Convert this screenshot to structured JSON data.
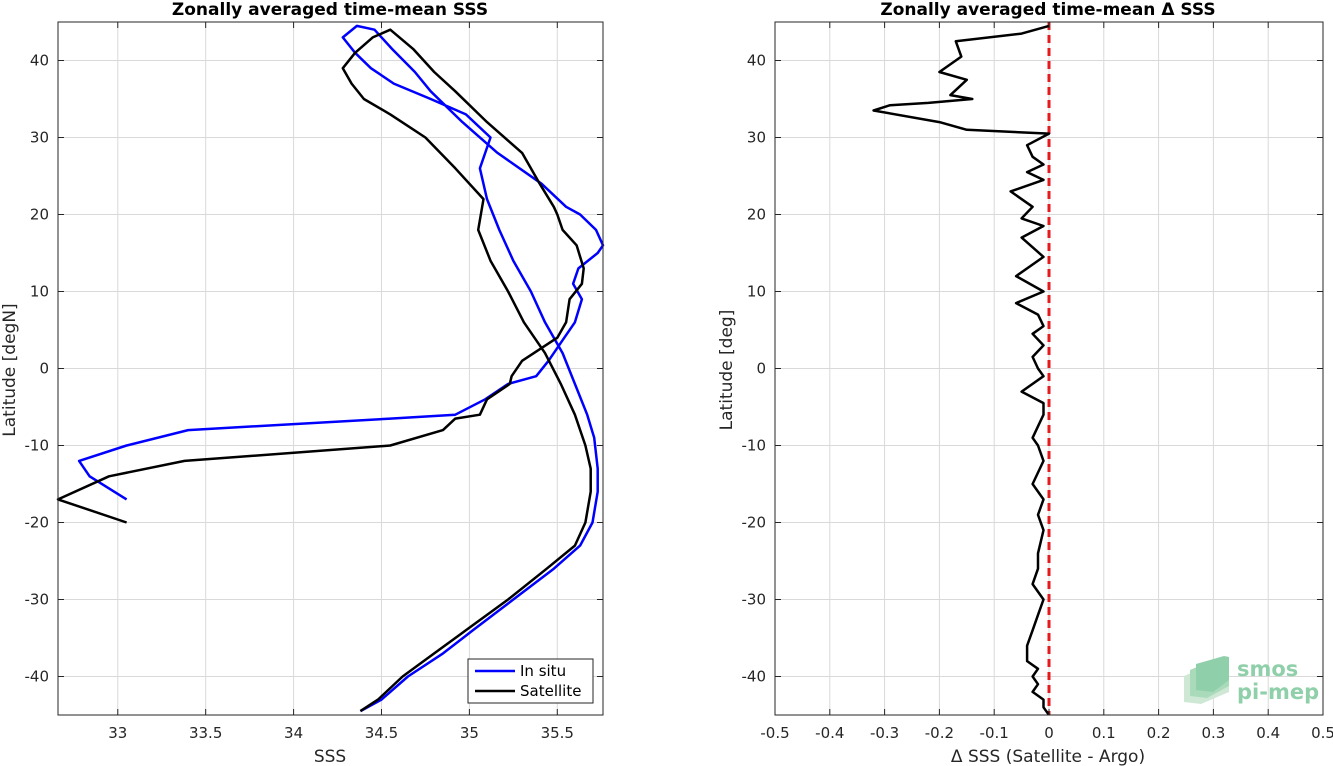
{
  "colors": {
    "in_situ": "#0000ff",
    "satellite": "#000000",
    "zero_line": "#e41a1c",
    "grid": "#d9d9d9",
    "logo": "#8fcfa9"
  },
  "logo": {
    "line1": "smos",
    "line2": "pi-mep"
  },
  "chart_data": [
    {
      "type": "line",
      "title": "Zonally averaged time-mean SSS",
      "xlabel": "SSS",
      "ylabel": "Latitude [degN]",
      "xlim": [
        32.66,
        35.76
      ],
      "ylim": [
        -45,
        45
      ],
      "xticks": [
        33,
        33.5,
        34,
        34.5,
        35,
        35.5
      ],
      "xtick_labels": [
        "33",
        "33.5",
        "34",
        "34.5",
        "35",
        "35.5"
      ],
      "yticks": [
        -40,
        -30,
        -20,
        -10,
        0,
        10,
        20,
        30,
        40
      ],
      "ytick_labels": [
        "-40",
        "-30",
        "-20",
        "-10",
        "0",
        "10",
        "20",
        "30",
        "40"
      ],
      "grid": true,
      "legend": "bottom-right",
      "series": [
        {
          "name": "In situ",
          "color": "#0000ff",
          "x": [
            34.38,
            34.5,
            34.65,
            34.85,
            35.02,
            35.25,
            35.48,
            35.63,
            35.7,
            35.73,
            35.73,
            35.71,
            35.67,
            35.6,
            35.53,
            35.43,
            35.35,
            35.25,
            35.17,
            35.1,
            35.06,
            35.12,
            34.98,
            34.78,
            34.57,
            34.44,
            34.35,
            34.28,
            34.36,
            34.46,
            34.56,
            34.69,
            34.78,
            34.96,
            35.16,
            35.41,
            35.55,
            35.63,
            35.72,
            35.76,
            35.73,
            35.62,
            35.59,
            35.64,
            35.6,
            35.54,
            35.45,
            35.38,
            35.22,
            35.09,
            34.92,
            34.55,
            33.4,
            33.05,
            32.78,
            32.84,
            33.05
          ],
          "y": [
            -44.5,
            -43,
            -40,
            -37,
            -34,
            -30,
            -26,
            -23,
            -20,
            -16,
            -13,
            -9,
            -6,
            -2,
            2,
            6,
            10,
            14,
            18,
            22,
            26,
            30,
            33,
            35,
            37,
            39,
            41,
            43,
            44.5,
            44,
            41.5,
            38.5,
            36,
            32,
            28,
            24,
            21,
            20,
            18,
            16,
            15,
            13,
            11,
            9,
            6,
            4,
            1,
            -1,
            -2,
            -4,
            -6,
            -6.5,
            -8,
            -10,
            -12,
            -14,
            -17
          ]
        },
        {
          "name": "Satellite",
          "color": "#000000",
          "x": [
            34.38,
            34.48,
            34.62,
            34.8,
            34.98,
            35.22,
            35.44,
            35.6,
            35.66,
            35.69,
            35.69,
            35.66,
            35.6,
            35.52,
            35.43,
            35.31,
            35.22,
            35.12,
            35.05,
            35.08,
            34.92,
            34.75,
            34.55,
            34.4,
            34.33,
            34.28,
            34.35,
            34.45,
            34.55,
            34.68,
            34.8,
            34.92,
            35.1,
            35.3,
            35.4,
            35.48,
            35.5,
            35.53,
            35.61,
            35.65,
            35.64,
            35.57,
            35.55,
            35.5,
            35.3,
            35.24,
            35.23,
            35.1,
            35.06,
            34.92,
            34.85,
            34.55,
            33.38,
            32.95,
            32.66,
            33.05
          ],
          "y": [
            -44.5,
            -43,
            -40,
            -37,
            -34,
            -30,
            -26,
            -23,
            -20,
            -16,
            -13,
            -10,
            -6,
            -2,
            2,
            6,
            10,
            14,
            18,
            22,
            26,
            30,
            33,
            35,
            37,
            39,
            41,
            43,
            44,
            41.5,
            38.5,
            36,
            32,
            28,
            24,
            21,
            20,
            18,
            16,
            13,
            11,
            9,
            6,
            4,
            1,
            -1,
            -2,
            -4,
            -6,
            -6.5,
            -8,
            -10,
            -12,
            -14,
            -17,
            -20
          ]
        }
      ]
    },
    {
      "type": "line",
      "title": "Zonally averaged time-mean Δ SSS",
      "xlabel": "Δ SSS (Satellite - Argo)",
      "ylabel": "Latitude [deg]",
      "xlim": [
        -0.5,
        0.5
      ],
      "ylim": [
        -45,
        45
      ],
      "xticks": [
        -0.5,
        -0.4,
        -0.3,
        -0.2,
        -0.1,
        0,
        0.1,
        0.2,
        0.3,
        0.4,
        0.5
      ],
      "xtick_labels": [
        "-0.5",
        "-0.4",
        "-0.3",
        "-0.2",
        "-0.1",
        "0",
        "0.1",
        "0.2",
        "0.3",
        "0.4",
        "0.5"
      ],
      "yticks": [
        -40,
        -30,
        -20,
        -10,
        0,
        10,
        20,
        30,
        40
      ],
      "ytick_labels": [
        "-40",
        "-30",
        "-20",
        "-10",
        "0",
        "10",
        "20",
        "30",
        "40"
      ],
      "grid": true,
      "reference_line": {
        "x": 0,
        "color": "#e41a1c",
        "style": "dashed"
      },
      "series": [
        {
          "color": "#000000",
          "x": [
            0,
            -0.05,
            -0.17,
            -0.16,
            -0.2,
            -0.15,
            -0.18,
            -0.14,
            -0.22,
            -0.29,
            -0.32,
            -0.2,
            -0.15,
            0,
            -0.04,
            -0.03,
            -0.01,
            -0.04,
            -0.01,
            -0.07,
            -0.03,
            -0.05,
            -0.01,
            -0.05,
            -0.01,
            -0.06,
            -0.01,
            -0.06,
            -0.02,
            -0.01,
            -0.03,
            -0.01,
            -0.03,
            -0.02,
            -0.01,
            -0.05,
            -0.01,
            -0.01,
            -0.02,
            -0.03,
            -0.02,
            -0.01,
            -0.03,
            -0.01,
            -0.02,
            -0.01,
            -0.02,
            -0.02,
            -0.03,
            -0.01,
            -0.02,
            -0.03,
            -0.04,
            -0.04,
            -0.02,
            -0.03,
            -0.02,
            -0.03,
            -0.01,
            -0.01,
            0
          ],
          "y": [
            44.5,
            43.5,
            42.5,
            40.5,
            38.5,
            37.5,
            35.5,
            35,
            34.5,
            34.2,
            33.5,
            32,
            31,
            30.5,
            29,
            27.5,
            26.5,
            25.5,
            24.5,
            23,
            21,
            19.5,
            18.5,
            17,
            14.5,
            12,
            10,
            8.5,
            7,
            5.5,
            4.5,
            3,
            1.5,
            0,
            -1,
            -3,
            -4.5,
            -6,
            -7.5,
            -9,
            -10,
            -12,
            -15,
            -17,
            -19,
            -21,
            -24,
            -26,
            -28,
            -30,
            -32,
            -34,
            -36,
            -38,
            -39,
            -40,
            -41,
            -42,
            -43,
            -44,
            -45
          ]
        }
      ]
    }
  ]
}
